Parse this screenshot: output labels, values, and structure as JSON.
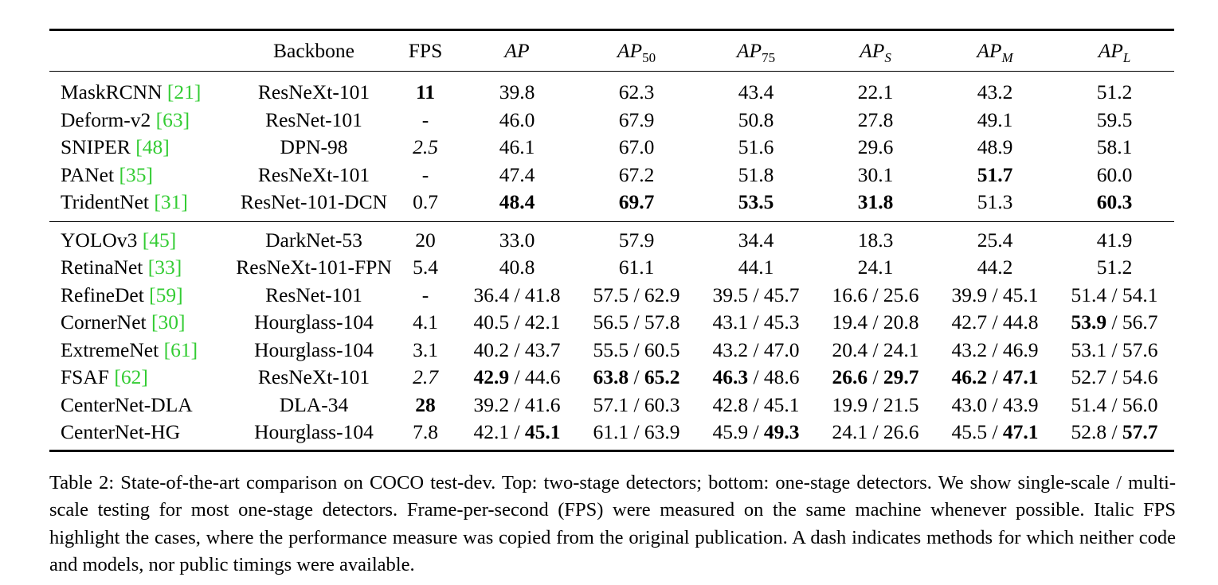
{
  "table": {
    "headers": {
      "method": "",
      "backbone": "Backbone",
      "fps": "FPS",
      "ap": "AP",
      "ap50": "50",
      "ap75": "75",
      "aps": "S",
      "apm": "M",
      "apl": "L",
      "ap_prefix": "AP"
    },
    "top_rows": [
      {
        "method": "MaskRCNN",
        "ref": "[21]",
        "backbone": "ResNeXt-101",
        "fps": "11",
        "fps_style": "bold",
        "cells": [
          [
            "39.8"
          ],
          [
            "62.3"
          ],
          [
            "43.4"
          ],
          [
            "22.1"
          ],
          [
            "43.2"
          ],
          [
            "51.2"
          ]
        ]
      },
      {
        "method": "Deform-v2",
        "ref": "[63]",
        "backbone": "ResNet-101",
        "fps": "-",
        "fps_style": "",
        "cells": [
          [
            "46.0"
          ],
          [
            "67.9"
          ],
          [
            "50.8"
          ],
          [
            "27.8"
          ],
          [
            "49.1"
          ],
          [
            "59.5"
          ]
        ]
      },
      {
        "method": "SNIPER",
        "ref": "[48]",
        "backbone": "DPN-98",
        "fps": "2.5",
        "fps_style": "italic",
        "cells": [
          [
            "46.1"
          ],
          [
            "67.0"
          ],
          [
            "51.6"
          ],
          [
            "29.6"
          ],
          [
            "48.9"
          ],
          [
            "58.1"
          ]
        ]
      },
      {
        "method": "PANet",
        "ref": "[35]",
        "backbone": "ResNeXt-101",
        "fps": "-",
        "fps_style": "",
        "cells": [
          [
            "47.4"
          ],
          [
            "67.2"
          ],
          [
            "51.8"
          ],
          [
            "30.1"
          ],
          [
            "51.7",
            "b"
          ],
          [
            "60.0"
          ]
        ]
      },
      {
        "method": "TridentNet",
        "ref": "[31]",
        "backbone": "ResNet-101-DCN",
        "fps": "0.7",
        "fps_style": "",
        "cells": [
          [
            "48.4",
            "b"
          ],
          [
            "69.7",
            "b"
          ],
          [
            "53.5",
            "b"
          ],
          [
            "31.8",
            "b"
          ],
          [
            "51.3"
          ],
          [
            "60.3",
            "b"
          ]
        ]
      }
    ],
    "bottom_rows": [
      {
        "method": "YOLOv3",
        "ref": "[45]",
        "backbone": "DarkNet-53",
        "fps": "20",
        "fps_style": "",
        "cells": [
          [
            "33.0"
          ],
          [
            "57.9"
          ],
          [
            "34.4"
          ],
          [
            "18.3"
          ],
          [
            "25.4"
          ],
          [
            "41.9"
          ]
        ]
      },
      {
        "method": "RetinaNet",
        "ref": "[33]",
        "backbone": "ResNeXt-101-FPN",
        "fps": "5.4",
        "fps_style": "",
        "cells": [
          [
            "40.8"
          ],
          [
            "61.1"
          ],
          [
            "44.1"
          ],
          [
            "24.1"
          ],
          [
            "44.2"
          ],
          [
            "51.2"
          ]
        ]
      },
      {
        "method": "RefineDet",
        "ref": "[59]",
        "backbone": "ResNet-101",
        "fps": "-",
        "fps_style": "",
        "cells": [
          [
            "36.4",
            "",
            "41.8",
            ""
          ],
          [
            "57.5",
            "",
            "62.9",
            ""
          ],
          [
            "39.5",
            "",
            "45.7",
            ""
          ],
          [
            "16.6",
            "",
            "25.6",
            ""
          ],
          [
            "39.9",
            "",
            "45.1",
            ""
          ],
          [
            "51.4",
            "",
            "54.1",
            ""
          ]
        ]
      },
      {
        "method": "CornerNet",
        "ref": "[30]",
        "backbone": "Hourglass-104",
        "fps": "4.1",
        "fps_style": "",
        "cells": [
          [
            "40.5",
            "",
            "42.1",
            ""
          ],
          [
            "56.5",
            "",
            "57.8",
            ""
          ],
          [
            "43.1",
            "",
            "45.3",
            ""
          ],
          [
            "19.4",
            "",
            "20.8",
            ""
          ],
          [
            "42.7",
            "",
            "44.8",
            ""
          ],
          [
            "53.9",
            "b",
            "56.7",
            ""
          ]
        ]
      },
      {
        "method": "ExtremeNet",
        "ref": "[61]",
        "backbone": "Hourglass-104",
        "fps": "3.1",
        "fps_style": "",
        "cells": [
          [
            "40.2",
            "",
            "43.7",
            ""
          ],
          [
            "55.5",
            "",
            "60.5",
            ""
          ],
          [
            "43.2",
            "",
            "47.0",
            ""
          ],
          [
            "20.4",
            "",
            "24.1",
            ""
          ],
          [
            "43.2",
            "",
            "46.9",
            ""
          ],
          [
            "53.1",
            "",
            "57.6",
            ""
          ]
        ]
      },
      {
        "method": "FSAF",
        "ref": "[62]",
        "backbone": "ResNeXt-101",
        "fps": "2.7",
        "fps_style": "italic",
        "cells": [
          [
            "42.9",
            "b",
            "44.6",
            ""
          ],
          [
            "63.8",
            "b",
            "65.2",
            "b"
          ],
          [
            "46.3",
            "b",
            "48.6",
            ""
          ],
          [
            "26.6",
            "b",
            "29.7",
            "b"
          ],
          [
            "46.2",
            "b",
            "47.1",
            "b"
          ],
          [
            "52.7",
            "",
            "54.6",
            ""
          ]
        ]
      },
      {
        "method": "CenterNet-DLA",
        "ref": "",
        "backbone": "DLA-34",
        "fps": "28",
        "fps_style": "bold",
        "cells": [
          [
            "39.2",
            "",
            "41.6",
            ""
          ],
          [
            "57.1",
            "",
            "60.3",
            ""
          ],
          [
            "42.8",
            "",
            "45.1",
            ""
          ],
          [
            "19.9",
            "",
            "21.5",
            ""
          ],
          [
            "43.0",
            "",
            "43.9",
            ""
          ],
          [
            "51.4",
            "",
            "56.0",
            ""
          ]
        ]
      },
      {
        "method": "CenterNet-HG",
        "ref": "",
        "backbone": "Hourglass-104",
        "fps": "7.8",
        "fps_style": "",
        "cells": [
          [
            "42.1",
            "",
            "45.1",
            "b"
          ],
          [
            "61.1",
            "",
            "63.9",
            ""
          ],
          [
            "45.9",
            "",
            "49.3",
            "b"
          ],
          [
            "24.1",
            "",
            "26.6",
            ""
          ],
          [
            "45.5",
            "",
            "47.1",
            "b"
          ],
          [
            "52.8",
            "",
            "57.7",
            "b"
          ]
        ]
      }
    ],
    "separator": " / "
  },
  "caption": {
    "text": "Table 2: State-of-the-art comparison on COCO test-dev. Top: two-stage detectors; bottom: one-stage detectors. We show single-scale / multi-scale testing for most one-stage detectors. Frame-per-second (FPS) were measured on the same machine whenever possible. Italic FPS highlight the cases, where the performance measure was copied from the original publication. A dash indicates methods for which neither code and models, nor public timings were available."
  },
  "colors": {
    "reference_link": "#33cc33",
    "text": "#000000",
    "background": "#ffffff"
  }
}
